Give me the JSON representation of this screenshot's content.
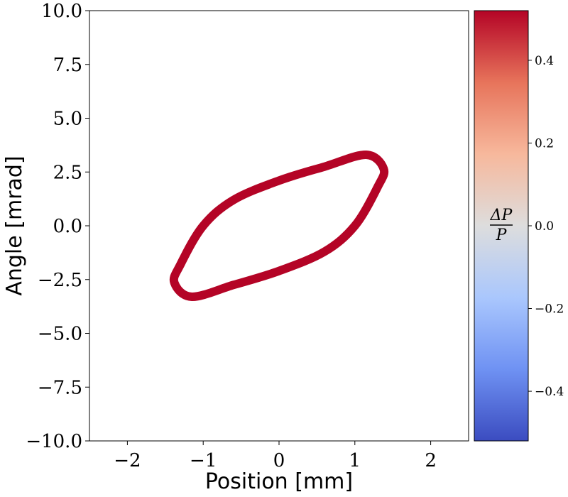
{
  "chart_data": {
    "type": "scatter",
    "title": "",
    "xlabel": "Position [mm]",
    "ylabel": "Angle [mrad]",
    "xlim": [
      -2.5,
      2.5
    ],
    "ylim": [
      -10,
      10
    ],
    "xticks": [
      -2,
      -1,
      0,
      1,
      2
    ],
    "xtick_labels": [
      "−2",
      "−1",
      "0",
      "1",
      "2"
    ],
    "yticks": [
      -10,
      -7.5,
      -5,
      -2.5,
      0,
      2.5,
      5,
      7.5,
      10
    ],
    "ytick_labels": [
      "−10.0",
      "−7.5",
      "−5.0",
      "−2.5",
      "0.0",
      "2.5",
      "5.0",
      "7.5",
      "10.0"
    ],
    "grid": false,
    "series": [
      {
        "shape": "ellipse",
        "points": [
          [
            1.38,
            2.65
          ],
          [
            1.3,
            1.8
          ],
          [
            1.0,
            0.0
          ],
          [
            0.6,
            -1.2
          ],
          [
            0.0,
            -2.1
          ],
          [
            -0.6,
            -2.75
          ],
          [
            -1.15,
            -3.3
          ],
          [
            -1.38,
            -2.65
          ],
          [
            -1.3,
            -1.8
          ],
          [
            -1.0,
            0.0
          ],
          [
            -0.6,
            1.2
          ],
          [
            0.0,
            2.1
          ],
          [
            0.6,
            2.75
          ],
          [
            1.15,
            3.3
          ]
        ],
        "dp_over_p": 0.52,
        "color": "#b40426"
      }
    ],
    "colorbar": {
      "label_num": "ΔP",
      "label_den": "P",
      "range": [
        -0.52,
        0.52
      ],
      "ticks": [
        0.4,
        0.2,
        0.0,
        -0.2,
        -0.4
      ],
      "tick_labels": [
        "0.4",
        "0.2",
        "0.0",
        "−0.2",
        "−0.4"
      ],
      "cmap": "coolwarm",
      "colors": [
        "#3b4cc0",
        "#6f92f3",
        "#aac7fd",
        "#dddddd",
        "#f7b89c",
        "#e7745b",
        "#b40426"
      ]
    }
  }
}
